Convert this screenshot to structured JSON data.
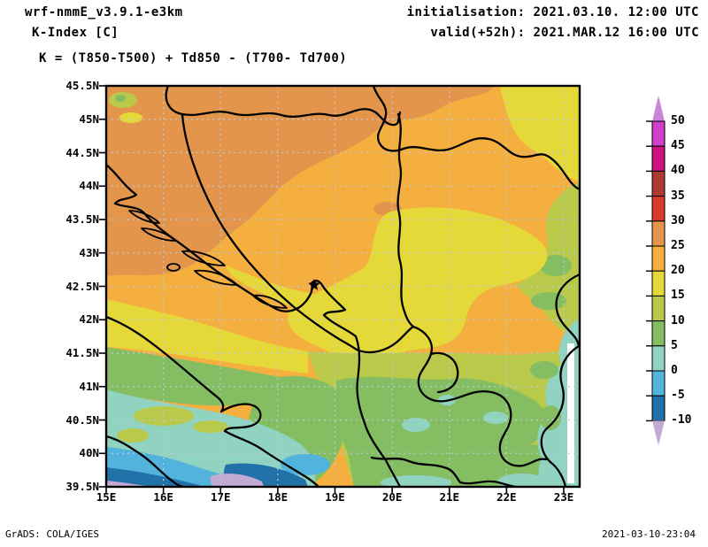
{
  "header": {
    "model": "wrf-nmmE_v3.9.1-e3km",
    "product": "K-Index [C]",
    "formula": "K = (T850-T500) + Td850 - (T700- Td700)"
  },
  "run": {
    "initialisation": "initialisation: 2021.03.10. 12:00 UTC",
    "valid": "valid(+52h): 2021.MAR.12 16:00 UTC"
  },
  "axes": {
    "lat_ticks": [
      "45.5N",
      "45N",
      "44.5N",
      "44N",
      "43.5N",
      "43N",
      "42.5N",
      "42N",
      "41.5N",
      "41N",
      "40.5N",
      "40N",
      "39.5N"
    ],
    "lon_ticks": [
      "15E",
      "16E",
      "17E",
      "18E",
      "19E",
      "20E",
      "21E",
      "22E",
      "23E"
    ]
  },
  "colorbar": {
    "tick_labels": [
      "50",
      "45",
      "40",
      "35",
      "30",
      "25",
      "20",
      "15",
      "10",
      "5",
      "0",
      "-5",
      "-10"
    ],
    "segment_colors": [
      "#cf3fc9",
      "#cc1380",
      "#ad3a31",
      "#d93a2b",
      "#e2954b",
      "#f5af3f",
      "#e5d93a",
      "#b9ca4a",
      "#84bd62",
      "#8fd3c0",
      "#52b4dc",
      "#2371a9"
    ],
    "arrow_top_color": "#cb85d8",
    "arrow_bottom_color": "#c3aad3"
  },
  "map": {
    "palette": {
      "amber": "#f5af3f",
      "darkorange": "#e2954b",
      "yellow": "#e5d93a",
      "yellowgreen": "#b9ca4a",
      "green": "#84bd62",
      "teal": "#8fd3c0",
      "blue": "#52b4dc",
      "darkblue": "#2371a9",
      "lavender": "#c3aad3",
      "grid": "#bcc8d8",
      "nodata": "#ffffff"
    },
    "marker": "★"
  },
  "footer": {
    "left": "GrADS: COLA/IGES",
    "right": "2021-03-10-23:04"
  }
}
